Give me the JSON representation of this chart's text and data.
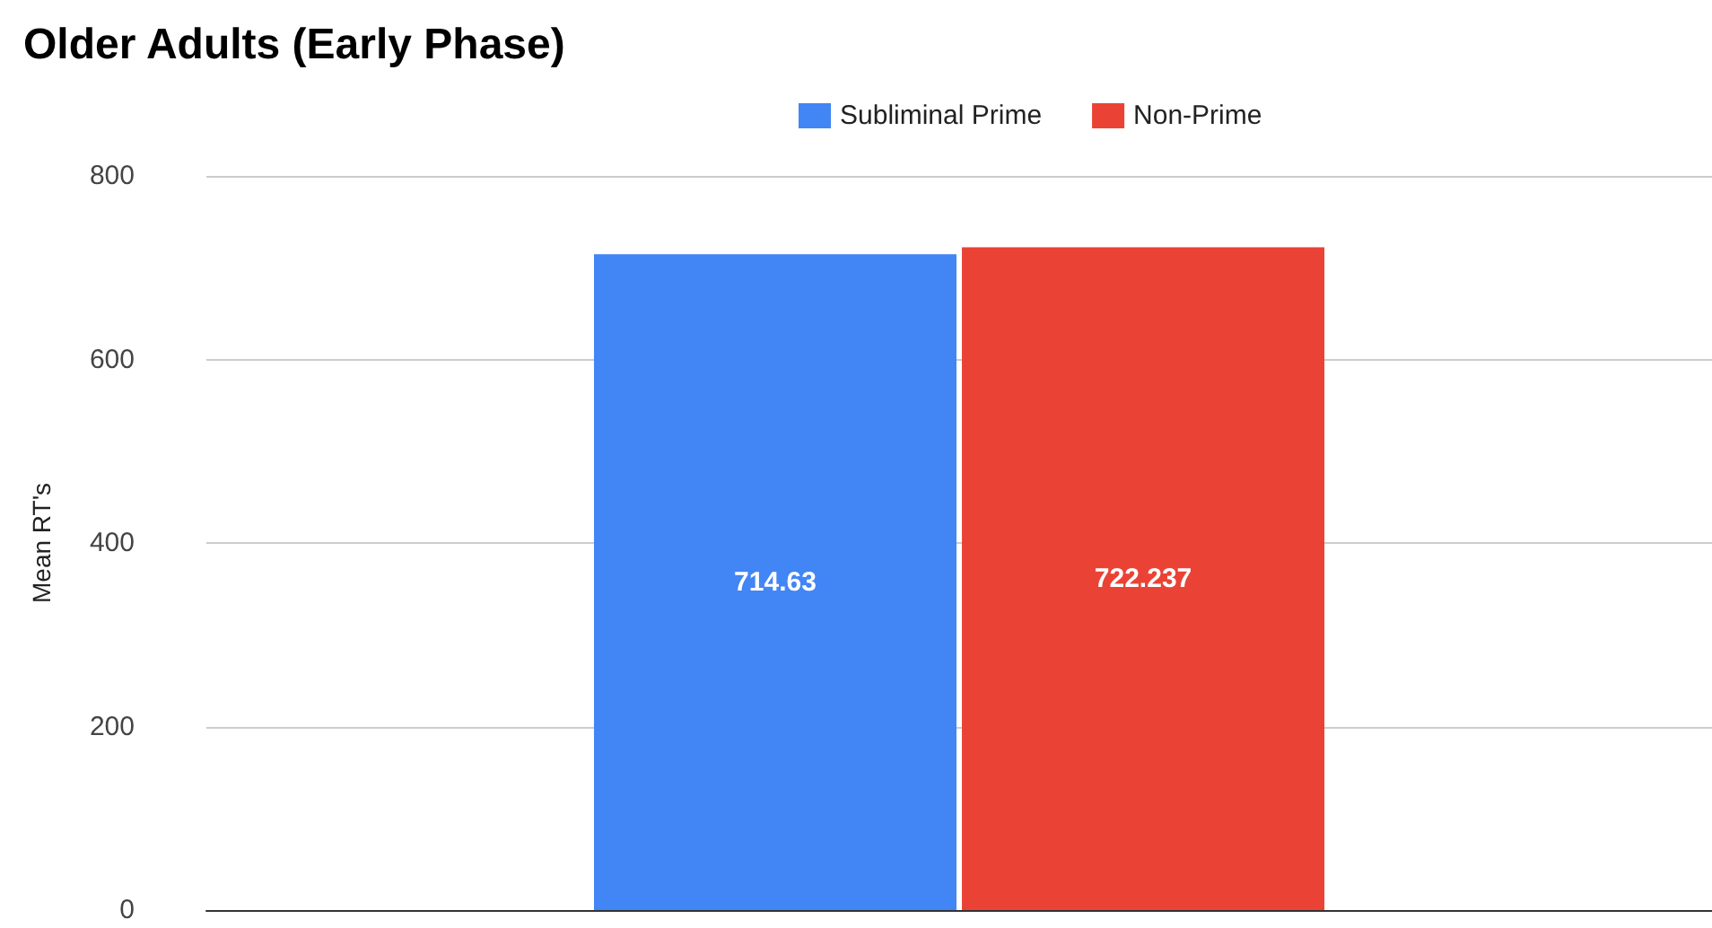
{
  "chart_data": {
    "type": "bar",
    "title": "Older Adults (Early Phase)",
    "ylabel": "Mean RT's",
    "categories": [
      null
    ],
    "series": [
      {
        "name": "Subliminal Prime",
        "color": "#4285f4",
        "values": [
          714.63
        ]
      },
      {
        "name": "Non-Prime",
        "color": "#ea4335",
        "values": [
          722.237
        ]
      }
    ],
    "ylim": [
      0,
      800
    ],
    "yticks": [
      0,
      200,
      400,
      600,
      800
    ],
    "grid": "y",
    "legend": "top",
    "data_labels": true
  }
}
